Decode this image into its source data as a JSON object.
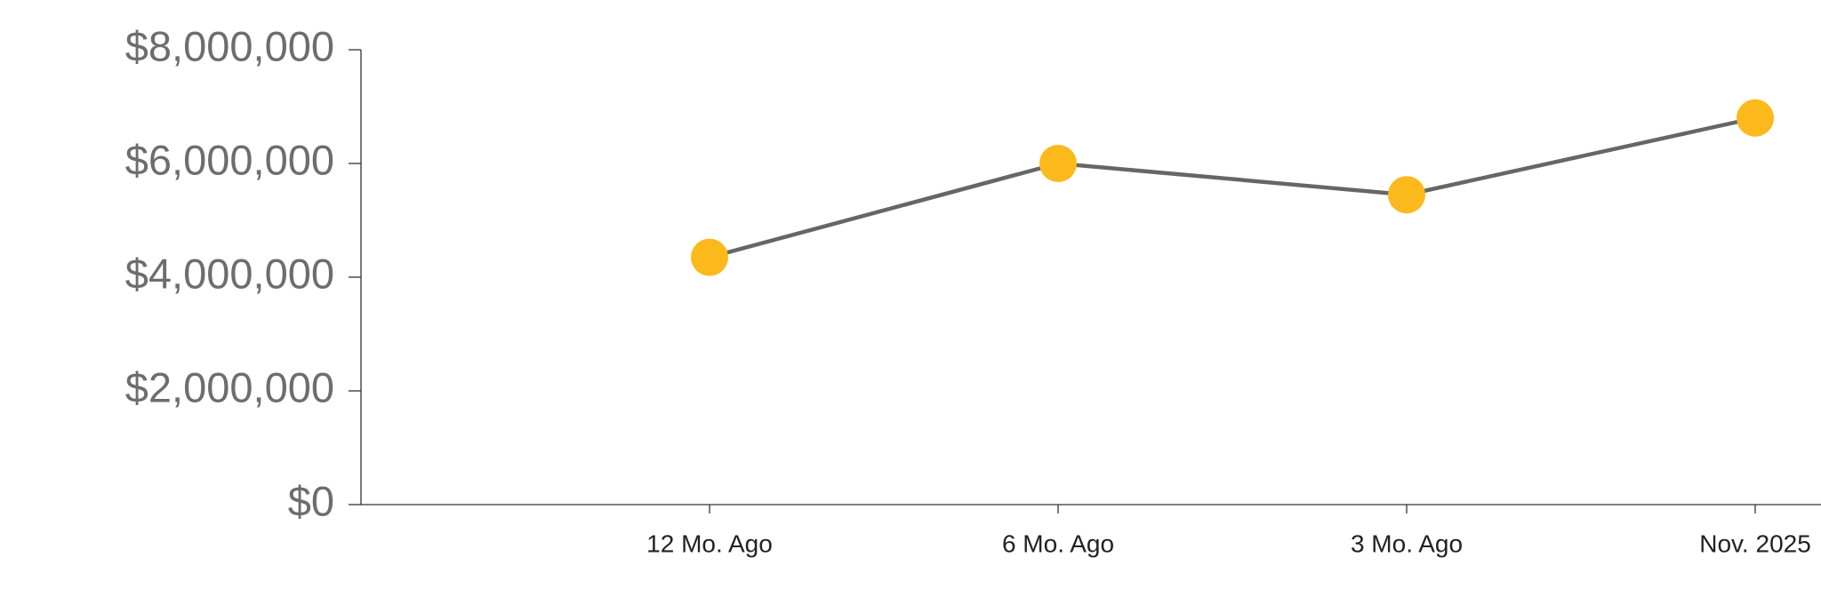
{
  "chart_data": {
    "type": "line",
    "categories": [
      "12 Mo. Ago",
      "6 Mo. Ago",
      "3 Mo. Ago",
      "Nov. 2025"
    ],
    "values": [
      4350000,
      6000000,
      5450000,
      6800000
    ],
    "line_color": "#666666",
    "marker_color": "#fbb91c",
    "ylim": [
      0,
      8000000
    ],
    "yticks": [
      {
        "value": 0,
        "label": "$0"
      },
      {
        "value": 2000000,
        "label": "$2,000,000"
      },
      {
        "value": 4000000,
        "label": "$4,000,000"
      },
      {
        "value": 6000000,
        "label": "$6,000,000"
      },
      {
        "value": 8000000,
        "label": "$8,000,000"
      }
    ]
  }
}
